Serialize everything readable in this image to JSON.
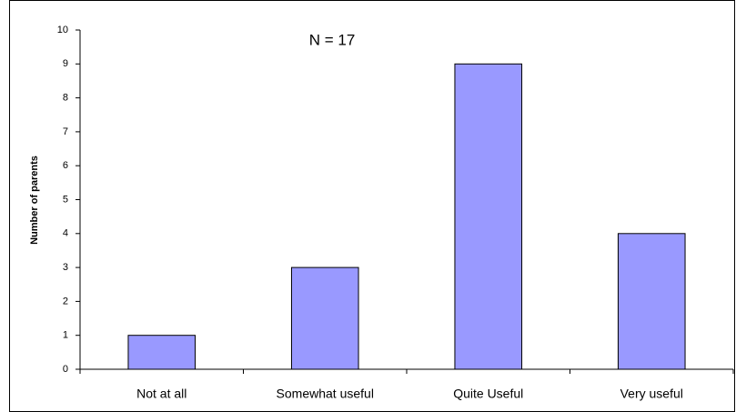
{
  "chart_data": {
    "type": "bar",
    "annotation": "N = 17",
    "ylabel": "Number of parents",
    "categories": [
      "Not at all",
      "Somewhat useful",
      "Quite Useful",
      "Very useful"
    ],
    "values": [
      1,
      3,
      9,
      4
    ],
    "color": "#9999ff",
    "ylim": [
      0,
      10
    ],
    "yticks": [
      0,
      1,
      2,
      3,
      4,
      5,
      6,
      7,
      8,
      9,
      10
    ],
    "grid": false
  }
}
